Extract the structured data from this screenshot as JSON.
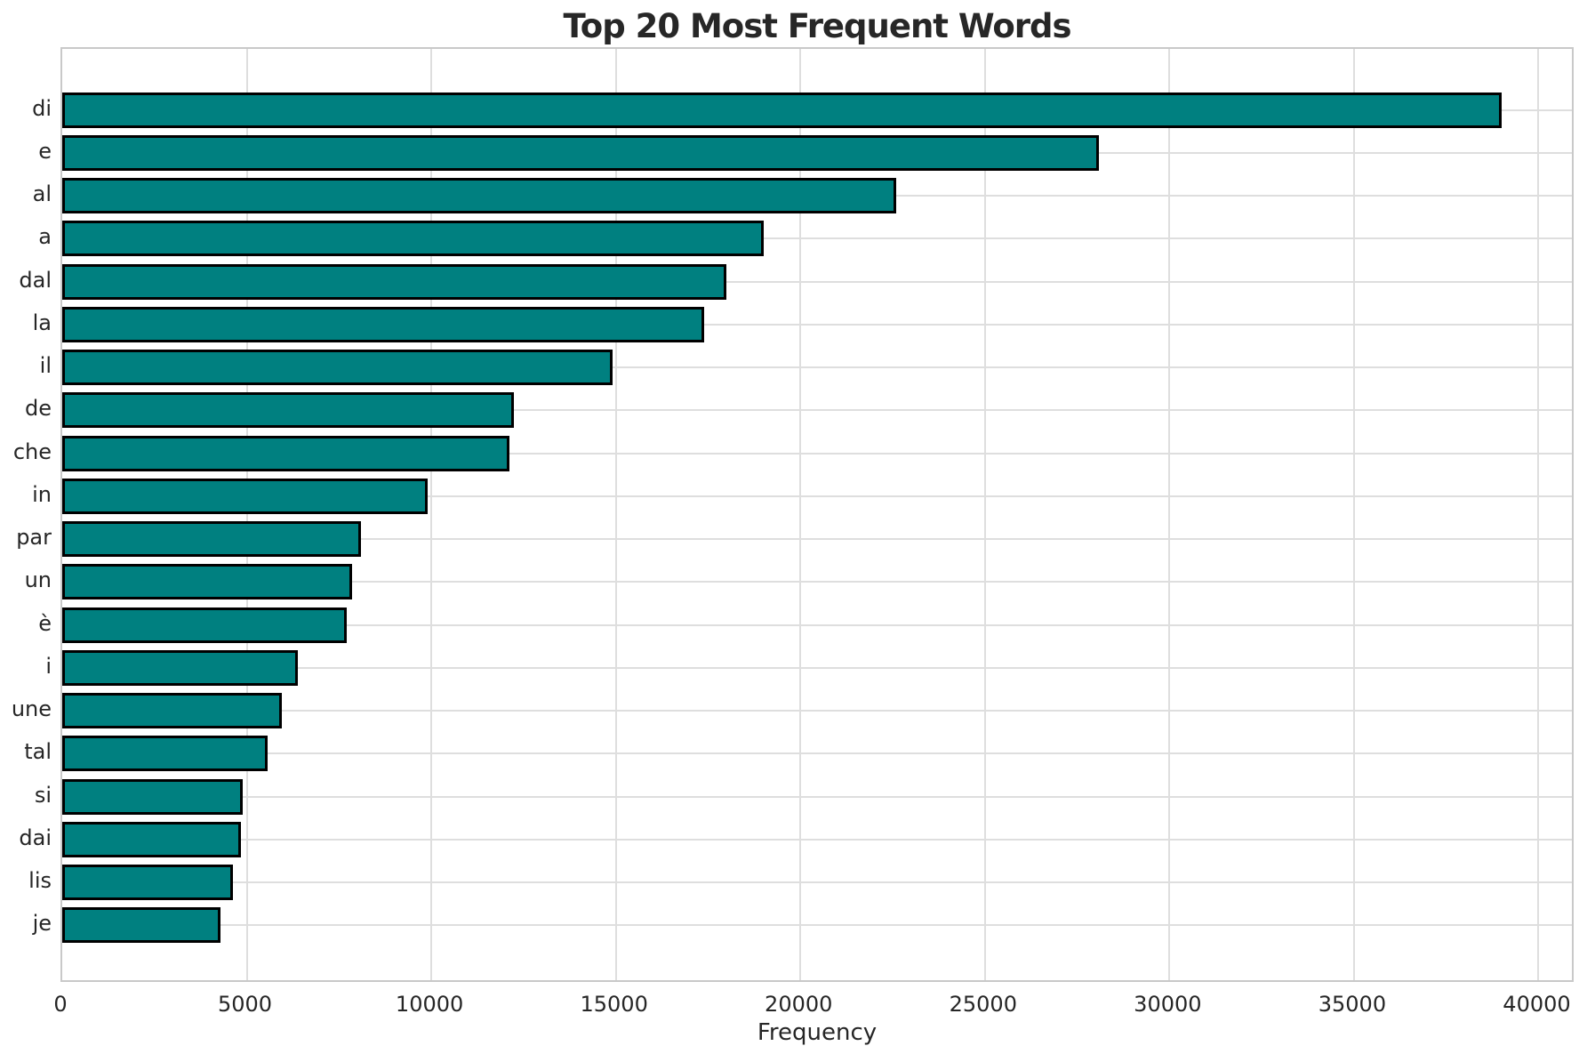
{
  "chart_data": {
    "type": "bar",
    "orientation": "horizontal",
    "title": "Top 20 Most Frequent Words",
    "xlabel": "Frequency",
    "ylabel": "",
    "categories": [
      "di",
      "e",
      "al",
      "a",
      "dal",
      "la",
      "il",
      "de",
      "che",
      "in",
      "par",
      "un",
      "è",
      "i",
      "une",
      "tal",
      "si",
      "dai",
      "lis",
      "je"
    ],
    "values": [
      39000,
      28100,
      22600,
      19000,
      18000,
      17400,
      14900,
      12230,
      12110,
      9890,
      8090,
      7850,
      7700,
      6380,
      5960,
      5560,
      4900,
      4850,
      4630,
      4280
    ],
    "xlim": [
      0,
      41000
    ],
    "xticks": [
      0,
      5000,
      10000,
      15000,
      20000,
      25000,
      30000,
      35000,
      40000
    ],
    "grid": "both",
    "legend": "none",
    "bar_color": "#008080",
    "bar_edge_color": "#000000",
    "grid_color": "#dedede",
    "spine_color": "#c9c9c9",
    "text_color": "#262626",
    "background_color": "#ffffff"
  }
}
